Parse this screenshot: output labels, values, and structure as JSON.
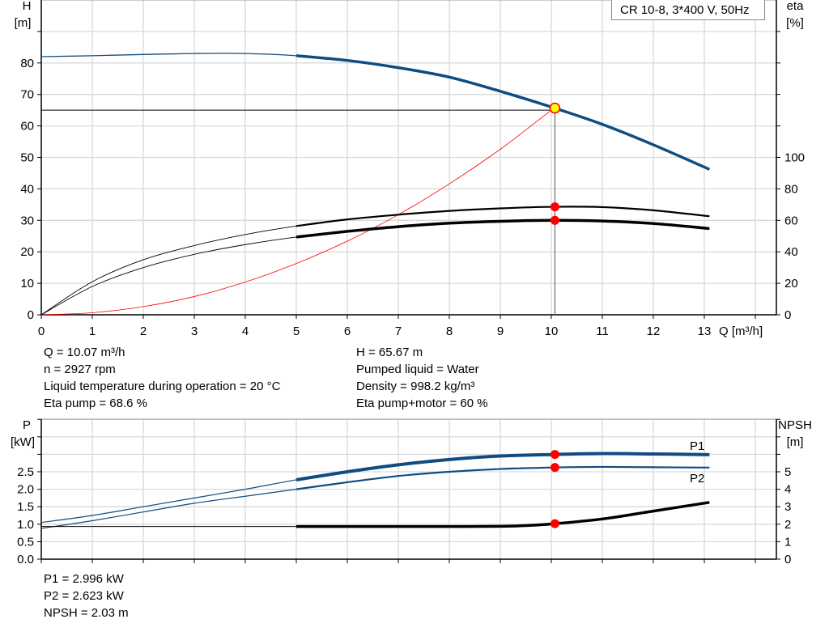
{
  "colors": {
    "blue": "#0f4c81",
    "red": "#ff0000",
    "yellow": "#ffff00",
    "black": "#000000",
    "grid": "#d9d9d9"
  },
  "chart_data": [
    {
      "type": "line",
      "title": "CR 10-8, 3*400 V, 50Hz",
      "xlabel": "Q [m³/h]",
      "ylabel": "H\n[m]",
      "ylabel_lines": [
        "H",
        "[m]"
      ],
      "y2label_lines": [
        "eta",
        "[%]"
      ],
      "xlim": [
        0,
        14.4
      ],
      "ylim": [
        0,
        90
      ],
      "y2lim": [
        0,
        180
      ],
      "xticks": [
        "0",
        "1",
        "2",
        "3",
        "4",
        "5",
        "6",
        "7",
        "8",
        "9",
        "10",
        "11",
        "12",
        "13"
      ],
      "yticks": [
        "0",
        "10",
        "20",
        "30",
        "40",
        "50",
        "60",
        "70",
        "80"
      ],
      "y2ticks": [
        "0",
        "20",
        "40",
        "60",
        "80",
        "100"
      ],
      "grid": true,
      "series": [
        {
          "key": "head",
          "axis": "left",
          "color": "#0f4c81",
          "x": [
            0,
            1,
            2,
            3,
            4,
            5,
            6,
            7,
            8,
            9,
            10,
            11,
            12,
            13.1
          ],
          "y": [
            82,
            82.3,
            82.7,
            83,
            83,
            82.3,
            80.8,
            78.5,
            75.5,
            71,
            66,
            60.5,
            54,
            46.2
          ]
        },
        {
          "key": "eta_pump",
          "axis": "right",
          "color": "#000000",
          "x": [
            0,
            1,
            2,
            3,
            4,
            5,
            6,
            7,
            8,
            9,
            10,
            11,
            12,
            13.1
          ],
          "y": [
            0,
            21,
            35,
            44,
            51,
            56.4,
            60.6,
            63.6,
            66,
            67.6,
            68.6,
            68.4,
            66.4,
            62.6
          ]
        },
        {
          "key": "eta_pump_motor",
          "axis": "right",
          "color": "#000000",
          "x": [
            0,
            1,
            2,
            3,
            4,
            5,
            6,
            7,
            8,
            9,
            10,
            11,
            12,
            13.1
          ],
          "y": [
            0,
            18,
            30,
            38.4,
            44.6,
            49.4,
            53,
            56,
            58.2,
            59.4,
            60,
            59.6,
            58,
            54.8
          ]
        },
        {
          "key": "system_curve",
          "axis": "left",
          "color": "#ff0000",
          "x": [
            0,
            1,
            2,
            3,
            4,
            5,
            6,
            7,
            8,
            9,
            10,
            10.07
          ],
          "y": [
            0,
            0.65,
            2.6,
            5.8,
            10.4,
            16.3,
            23.4,
            31.8,
            41.6,
            52.6,
            65,
            65.67
          ]
        }
      ],
      "operating_point": {
        "Q": 10.07,
        "H": 65.67,
        "eta_pump": 68.6,
        "eta_pump_motor": 60
      },
      "duty_line_H": 65
    },
    {
      "type": "line",
      "xlim": [
        0,
        14.4
      ],
      "ylim": [
        0,
        4
      ],
      "y2lim": [
        0,
        8
      ],
      "ylabel_lines": [
        "P",
        "[kW]"
      ],
      "y2label_lines": [
        "NPSH",
        "[m]"
      ],
      "yticks": [
        "0.0",
        "0.5",
        "1.0",
        "1.5",
        "2.0",
        "2.5"
      ],
      "y2ticks": [
        "0",
        "1",
        "2",
        "3",
        "4",
        "5"
      ],
      "grid": true,
      "series": [
        {
          "key": "p1",
          "name": "P1",
          "axis": "left",
          "color": "#0f4c81",
          "x": [
            0,
            1,
            2,
            3,
            4,
            5,
            6,
            7,
            8,
            9,
            10.07,
            11,
            12,
            13.1
          ],
          "y": [
            1.05,
            1.25,
            1.5,
            1.75,
            2.0,
            2.27,
            2.5,
            2.7,
            2.85,
            2.95,
            2.996,
            3.02,
            3.01,
            2.99
          ]
        },
        {
          "key": "p2",
          "name": "P2",
          "axis": "left",
          "color": "#0f4c81",
          "x": [
            0,
            1,
            2,
            3,
            4,
            5,
            6,
            7,
            8,
            9,
            10.07,
            11,
            12,
            13.1
          ],
          "y": [
            0.88,
            1.1,
            1.35,
            1.6,
            1.8,
            2.0,
            2.2,
            2.38,
            2.5,
            2.58,
            2.623,
            2.64,
            2.63,
            2.62
          ]
        },
        {
          "key": "npsh",
          "axis": "right",
          "color": "#000000",
          "x": [
            0,
            1,
            2,
            3,
            4,
            5,
            6,
            7,
            8,
            9,
            9.5,
            10.07,
            11,
            12,
            13.1
          ],
          "y": [
            1.87,
            1.87,
            1.87,
            1.87,
            1.87,
            1.87,
            1.87,
            1.87,
            1.87,
            1.88,
            1.92,
            2.03,
            2.3,
            2.75,
            3.25
          ]
        }
      ],
      "operating_point": {
        "Q": 10.07,
        "P1": 2.996,
        "P2": 2.623,
        "NPSH": 2.03
      }
    }
  ],
  "info_top_left": [
    "Q = 10.07 m³/h",
    "n = 2927 rpm",
    "Liquid temperature during operation = 20 °C",
    "Eta pump = 68.6 %"
  ],
  "info_top_right": [
    "H = 65.67 m",
    "Pumped liquid = Water",
    "Density = 998.2 kg/m³",
    "Eta pump+motor = 60 %"
  ],
  "info_bottom": [
    "P1 = 2.996 kW",
    "P2 = 2.623 kW",
    "NPSH = 2.03 m"
  ]
}
